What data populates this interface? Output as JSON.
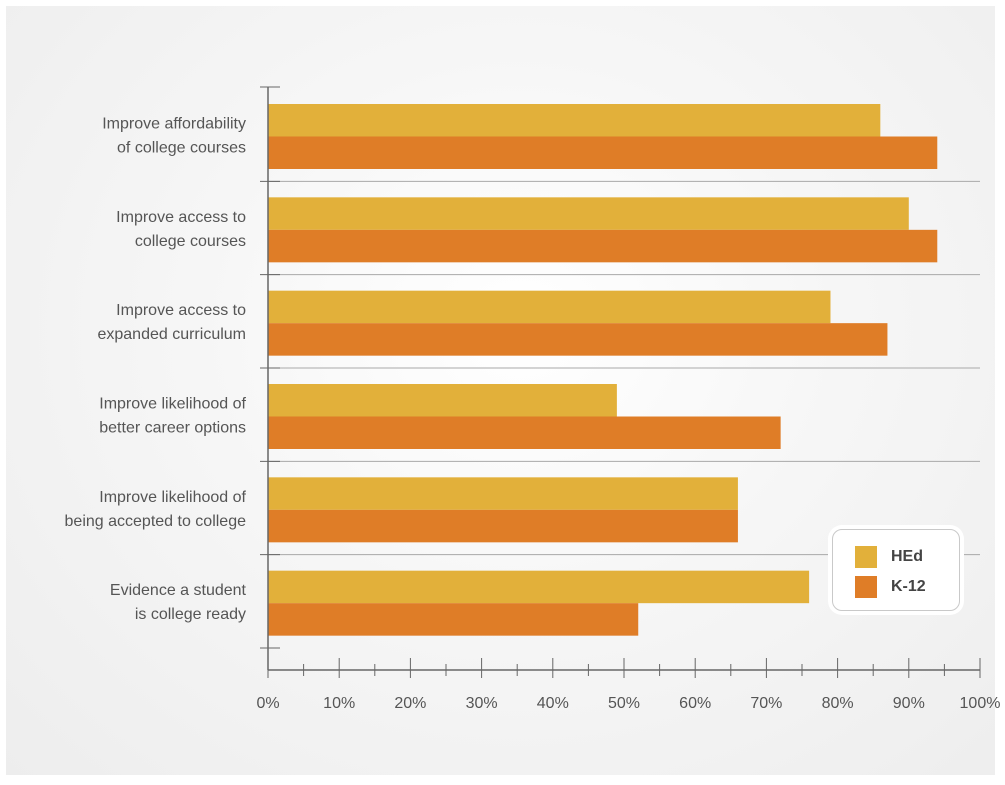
{
  "chart_data": {
    "type": "bar",
    "orientation": "horizontal",
    "categories": [
      [
        "Improve affordability",
        "of college courses"
      ],
      [
        "Improve access to",
        "college courses"
      ],
      [
        "Improve access to",
        "expanded curriculum"
      ],
      [
        "Improve likelihood of",
        "better career options"
      ],
      [
        "Improve likelihood of",
        "being accepted to college"
      ],
      [
        "Evidence a student",
        "is college ready"
      ]
    ],
    "series": [
      {
        "name": "HEd",
        "color": "#e2b03a",
        "values": [
          86,
          90,
          79,
          49,
          66,
          76
        ]
      },
      {
        "name": "K-12",
        "color": "#df7d27",
        "values": [
          94,
          94,
          87,
          72,
          66,
          52
        ]
      }
    ],
    "xlim": [
      0,
      100
    ],
    "xticks": [
      "0%",
      "10%",
      "20%",
      "30%",
      "40%",
      "50%",
      "60%",
      "70%",
      "80%",
      "90%",
      "100%"
    ],
    "title": "",
    "xlabel": "",
    "ylabel": "",
    "grid": "horizontal separators between categories",
    "legend_position": "bottom-right"
  }
}
